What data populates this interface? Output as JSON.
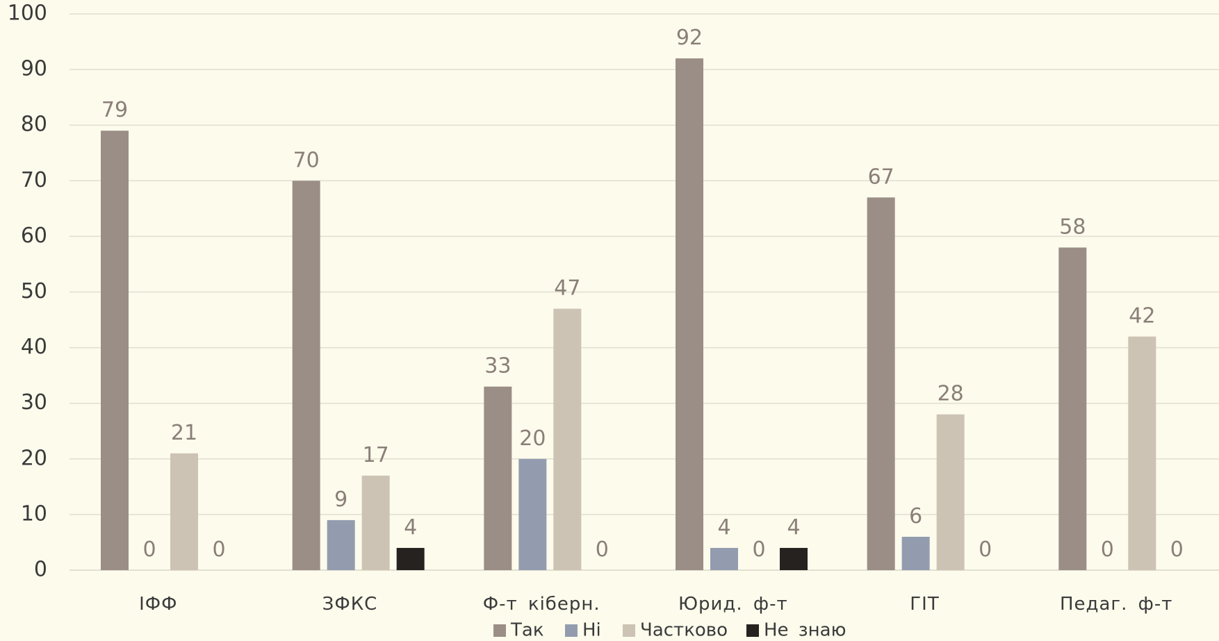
{
  "chart_data": {
    "type": "bar",
    "categories": [
      "ІФФ",
      "ЗФКС",
      "Ф-т  кіберн.",
      "Юрид.  ф-т",
      "ГІТ",
      "Педаг.  ф-т"
    ],
    "series": [
      {
        "name": "Так",
        "color": "#9b8e86",
        "values": [
          79,
          70,
          33,
          92,
          67,
          58
        ]
      },
      {
        "name": "Ні",
        "color": "#939caf",
        "values": [
          0,
          9,
          20,
          4,
          6,
          0
        ]
      },
      {
        "name": "Частково",
        "color": "#cdc3b4",
        "values": [
          21,
          17,
          47,
          0,
          28,
          42
        ]
      },
      {
        "name": "Не  знаю",
        "color": "#252220",
        "values": [
          0,
          4,
          0,
          4,
          0,
          0
        ]
      }
    ],
    "ylim": [
      0,
      100
    ],
    "yticks": [
      0,
      10,
      20,
      30,
      40,
      50,
      60,
      70,
      80,
      90,
      100
    ],
    "title": "",
    "xlabel": "",
    "ylabel": "",
    "grid": true,
    "legend_position": "bottom"
  }
}
